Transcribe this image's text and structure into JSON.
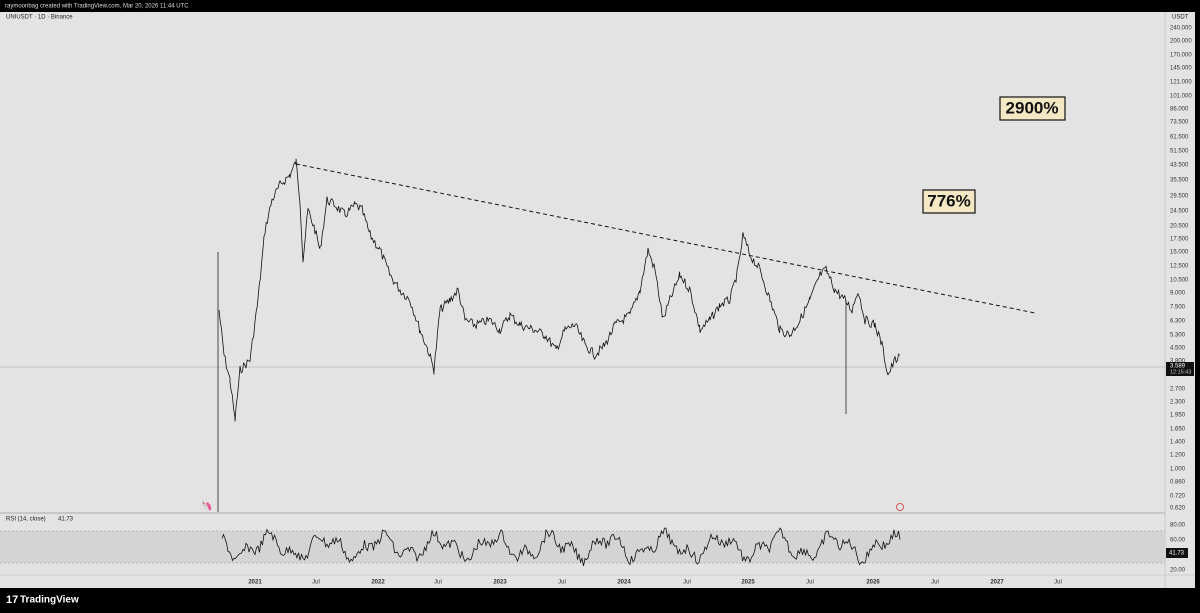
{
  "header": {
    "credit": "raymoonbag created with TradingView.com, Mar 20, 2026 11:44 UTC"
  },
  "chart": {
    "symbol": "UNIUSDT · 1D · Binance",
    "currency": "USDT",
    "price_axis": [
      "240.000",
      "200.000",
      "170.000",
      "145.000",
      "121.000",
      "101.000",
      "86.000",
      "73.500",
      "61.500",
      "51.500",
      "43.500",
      "35.500",
      "29.500",
      "24.500",
      "20.500",
      "17.500",
      "15.000",
      "12.500",
      "10.500",
      "9.000",
      "7.500",
      "6.300",
      "5.300",
      "4.500",
      "3.800",
      "2.700",
      "2.300",
      "1.950",
      "1.650",
      "1.400",
      "1.200",
      "1.000",
      "0.860",
      "0.720",
      "0.620"
    ],
    "price_tag": {
      "value": "3.589",
      "countdown": "12:15:43"
    },
    "annotations": [
      "2900%",
      "776%"
    ]
  },
  "rsi": {
    "label": "RSI (14, close)",
    "value": "41.73",
    "axis": [
      "80.00",
      "60.00",
      "20.00"
    ]
  },
  "time_axis": [
    "2021",
    "Jul",
    "2022",
    "Jul",
    "2023",
    "Jul",
    "2024",
    "Jul",
    "2025",
    "Jul",
    "2026",
    "Jul",
    "2027",
    "Jul"
  ],
  "footer": {
    "brand": "TradingView"
  }
}
